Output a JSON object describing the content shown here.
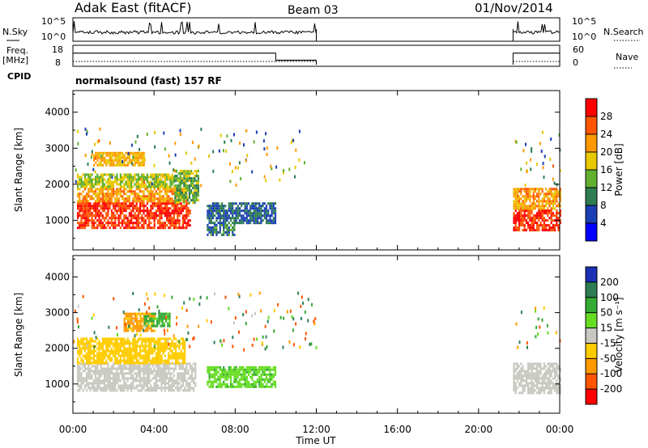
{
  "header": {
    "station": "Adak East (fitACF)",
    "beam": "Beam 03",
    "date": "01/Nov/2014"
  },
  "panel_labels": {
    "nsky": "N.Sky",
    "nsearch": "N.Search",
    "freq_line1": "Freq.",
    "freq_line2": "[MHz]",
    "nave": "Nave",
    "cpid": "CPID",
    "cpid_value": "normalsound (fast) 157 RF"
  },
  "noise_axis": {
    "left_ticks": [
      "10^5",
      "10^0"
    ],
    "right_ticks": [
      "10^5",
      "10^0"
    ]
  },
  "freq_axis": {
    "left_ticks": [
      "18",
      "8"
    ],
    "right_ticks": [
      "60",
      "0"
    ]
  },
  "power_panel": {
    "ylabel": "Slant Range [km]",
    "yticks": [
      "4000",
      "3000",
      "2000",
      "1000"
    ],
    "colorbar_label": "Power [dB]",
    "colorbar_ticks": [
      "28",
      "24",
      "20",
      "16",
      "12",
      "8",
      "4"
    ],
    "colors": [
      "#0000ff",
      "#1a3fb4",
      "#2e7d52",
      "#62b030",
      "#e8c800",
      "#ff9900",
      "#ff5500",
      "#ff0000"
    ]
  },
  "velocity_panel": {
    "ylabel": "Slant Range [km]",
    "yticks": [
      "4000",
      "3000",
      "2000",
      "1000"
    ],
    "colorbar_label": "Velocity [m s⁻¹]",
    "colorbar_ticks": [
      "200",
      "100",
      "50",
      "15",
      "-15",
      "-50",
      "-100",
      "-200"
    ],
    "colors": [
      "#1a2fb4",
      "#2e7d52",
      "#33aa33",
      "#66dd22",
      "#c8c8c0",
      "#ffcc00",
      "#ff9900",
      "#ff5500",
      "#ff0000"
    ]
  },
  "time_axis": {
    "xlabel": "Time UT",
    "ticks": [
      "00:00",
      "04:00",
      "08:00",
      "12:00",
      "16:00",
      "20:00",
      "00:00"
    ]
  },
  "chart_data": {
    "type": "heatmap",
    "title": "Adak East (fitACF) Beam 03 01/Nov/2014",
    "xlabel": "Time UT",
    "ylabel": "Slant Range [km]",
    "xlim_hours": [
      0,
      24
    ],
    "ylim_km": [
      180,
      4600
    ],
    "grid": false,
    "data_gaps_hours": [
      [
        12.0,
        21.7
      ]
    ],
    "noise_panel": {
      "nsky_log10_ticks": [
        0,
        5
      ],
      "nsearch_log10_ticks": [
        0,
        5
      ]
    },
    "frequency_panel": {
      "freq_mhz_ticks": [
        8,
        18
      ],
      "nave_ticks": [
        0,
        60
      ],
      "segments": [
        {
          "start_h": 0.0,
          "end_h": 10.0,
          "freq_mhz": 14.5
        },
        {
          "start_h": 10.0,
          "end_h": 12.0,
          "freq_mhz": 10.5
        },
        {
          "start_h": 21.7,
          "end_h": 24.0,
          "freq_mhz": 14.5
        }
      ]
    },
    "power_regions": [
      {
        "t0": 0.2,
        "t1": 5.8,
        "r0": 800,
        "r1": 1500,
        "db": 28
      },
      {
        "t0": 0.2,
        "t1": 5.6,
        "r0": 1500,
        "r1": 1900,
        "db": 22
      },
      {
        "t0": 0.2,
        "t1": 5.0,
        "r0": 1900,
        "r1": 2300,
        "db": 16
      },
      {
        "t0": 1.0,
        "t1": 3.5,
        "r0": 2500,
        "r1": 2900,
        "db": 20
      },
      {
        "t0": 5.0,
        "t1": 6.2,
        "r0": 1500,
        "r1": 2400,
        "db": 14
      },
      {
        "t0": 6.6,
        "t1": 10.0,
        "r0": 900,
        "r1": 1500,
        "db": 8
      },
      {
        "t0": 6.6,
        "t1": 8.0,
        "r0": 600,
        "r1": 900,
        "db": 10
      },
      {
        "t0": 21.7,
        "t1": 24.0,
        "r0": 750,
        "r1": 1300,
        "db": 28
      },
      {
        "t0": 21.7,
        "t1": 24.0,
        "r0": 1300,
        "r1": 1900,
        "db": 22
      }
    ],
    "velocity_regions": [
      {
        "t0": 0.2,
        "t1": 6.0,
        "r0": 800,
        "r1": 1600,
        "vel": 0
      },
      {
        "t0": 0.2,
        "t1": 5.5,
        "r0": 1600,
        "r1": 2300,
        "vel": -30
      },
      {
        "t0": 2.5,
        "t1": 4.0,
        "r0": 2500,
        "r1": 3000,
        "vel": -60
      },
      {
        "t0": 3.5,
        "t1": 4.8,
        "r0": 2600,
        "r1": 3000,
        "vel": 60
      },
      {
        "t0": 6.6,
        "t1": 10.0,
        "r0": 900,
        "r1": 1500,
        "vel": 40
      },
      {
        "t0": 21.7,
        "t1": 24.0,
        "r0": 750,
        "r1": 1600,
        "vel": 0
      }
    ]
  }
}
